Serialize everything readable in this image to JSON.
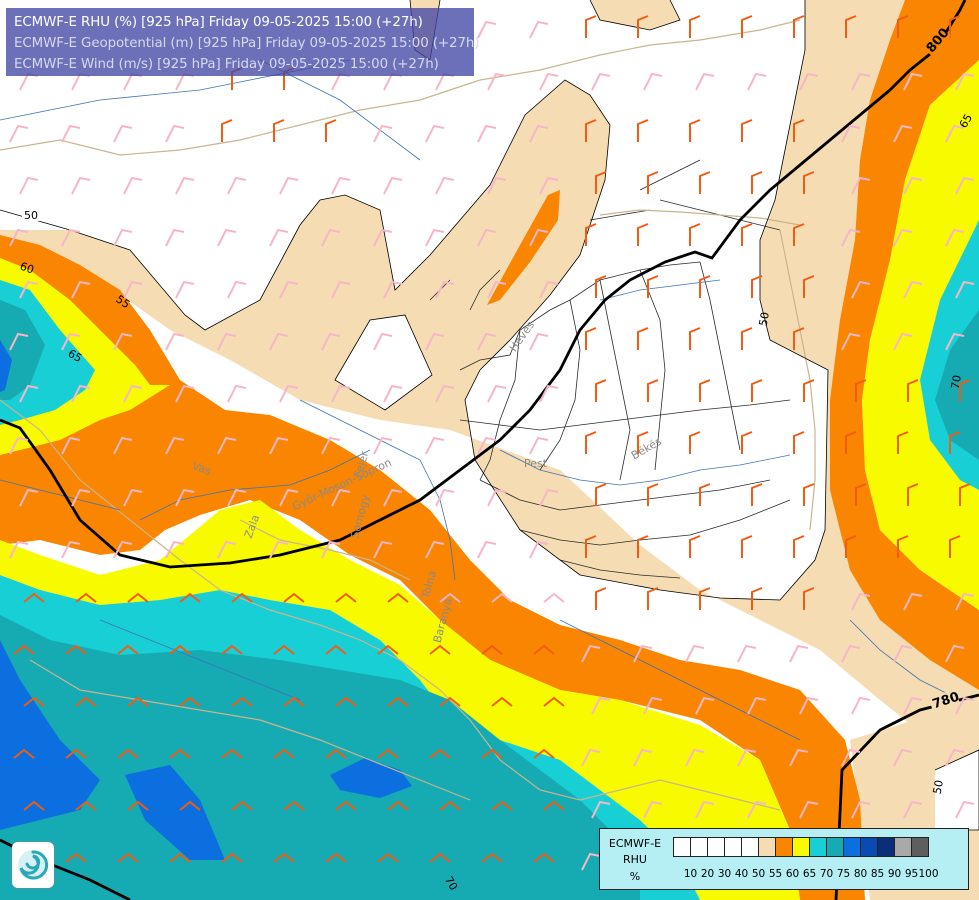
{
  "header": {
    "line1": "ECMWF-E RHU (%) [925 hPa] Friday 09-05-2025 15:00 (+27h)",
    "line2": "ECMWF-E Geopotential (m) [925 hPa] Friday 09-05-2025 15:00 (+27h)",
    "line3": "ECMWF-E Wind (m/s) [925 hPa] Friday 09-05-2025 15:00 (+27h)"
  },
  "legend": {
    "line1": "ECMWF-E",
    "line2": "RHU",
    "line3": "%",
    "ticks": [
      "10",
      "20",
      "30",
      "40",
      "50",
      "55",
      "60",
      "65",
      "70",
      "75",
      "80",
      "85",
      "90",
      "95",
      "100"
    ],
    "colors": [
      "#ffffff",
      "#ffffff",
      "#ffffff",
      "#ffffff",
      "#ffffff",
      "#f6dcb2",
      "#f98500",
      "#f8fb00",
      "#18cfd5",
      "#16aab2",
      "#0b6fe0",
      "#0a4ab2",
      "#0a2f78",
      "#a9a9a9",
      "#5e5e5e"
    ]
  },
  "contour_labels": {
    "geo_800": "800",
    "geo_780": "780",
    "rh_50_left": "50",
    "rh_60": "60",
    "rh_55": "55",
    "rh_65_left": "65",
    "rh_50_center": "50",
    "rh_65_right": "65",
    "rh_70_right": "70",
    "rh_50_bottom": "50",
    "rh_70_bottom": "70"
  },
  "places": {
    "pest": "Pest",
    "bekes": "Békés",
    "heves": "Heves",
    "vas": "Vas",
    "zala": "Zala",
    "somogy": "Somogy",
    "gyor": "Győr-Moson-Sopron",
    "fejer": "Fejér",
    "tolna": "Tolna",
    "baranya": "Baranya"
  },
  "logo": {
    "icon": "ecmwf-swirl-logo"
  },
  "colors": {
    "title_bg": "#4248a5",
    "rh50_55": "#f6dcb2",
    "rh55_60": "#f98500",
    "rh60_65": "#f8fb00",
    "rh65_70": "#18cfd5",
    "rh70_75": "#16aab2",
    "rh75_80": "#0b6fe0",
    "geopotential": "#000000",
    "wind_light": "#f5b6c8",
    "wind_strong": "#ef5d12"
  }
}
